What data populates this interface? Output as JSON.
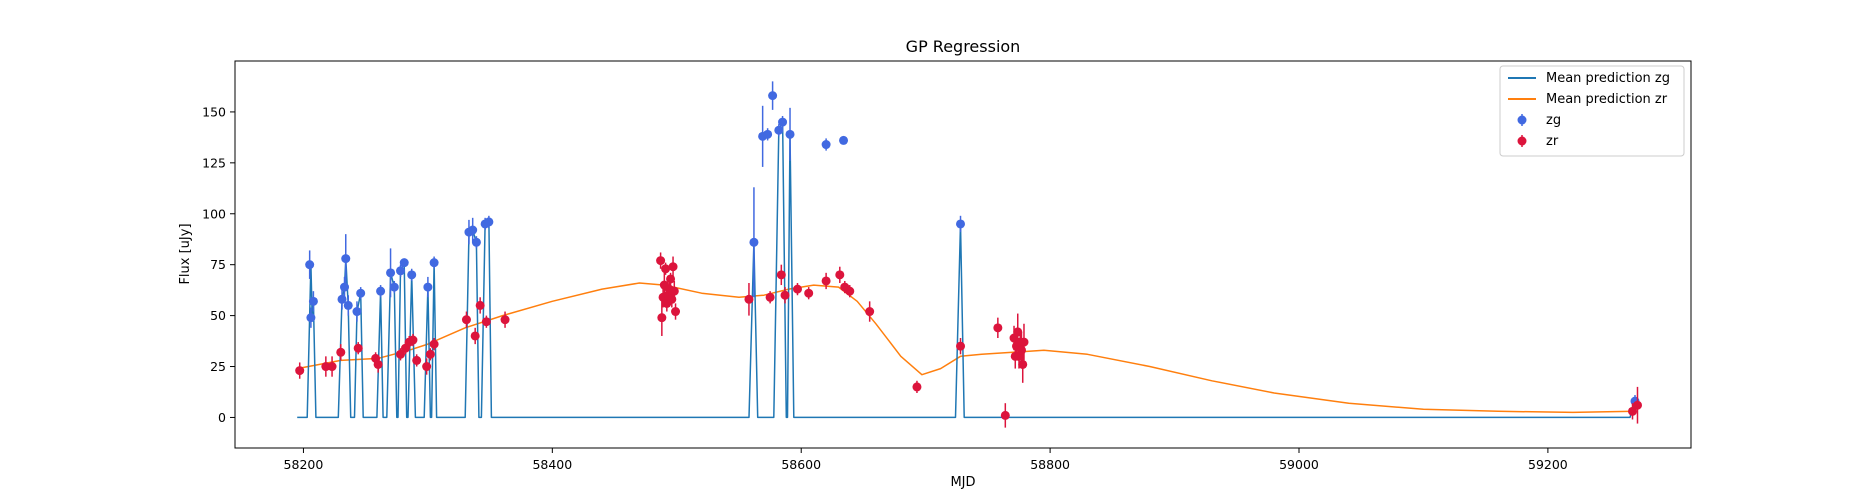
{
  "chart_data": {
    "type": "scatter",
    "title": "GP Regression",
    "xlabel": "MJD",
    "ylabel": "Flux [uJy]",
    "xlim": [
      58145,
      59315
    ],
    "ylim": [
      -15,
      175
    ],
    "xticks": [
      58200,
      58400,
      58600,
      58800,
      59000,
      59200
    ],
    "yticks": [
      0,
      25,
      50,
      75,
      100,
      125,
      150
    ],
    "grid": false,
    "legend_position": "top-right",
    "legend": {
      "mean_zg": "Mean prediction zg",
      "mean_zr": "Mean prediction zr",
      "zg": "zg",
      "zr": "zr"
    },
    "colors": {
      "mean_zg": "#1f77b4",
      "mean_zr": "#ff7f0e",
      "zg": "#4169e1",
      "zr": "#dc143c"
    },
    "series": [
      {
        "name": "zg",
        "kind": "errorbar",
        "points": [
          [
            58205,
            75,
            7
          ],
          [
            58206,
            49,
            5
          ],
          [
            58208,
            57,
            5
          ],
          [
            58231,
            58,
            5
          ],
          [
            58233,
            64,
            5
          ],
          [
            58234,
            78,
            12
          ],
          [
            58236,
            55,
            5
          ],
          [
            58243,
            52,
            5
          ],
          [
            58246,
            61,
            3
          ],
          [
            58262,
            62,
            3
          ],
          [
            58270,
            71,
            12
          ],
          [
            58273,
            64,
            3
          ],
          [
            58278,
            72,
            3
          ],
          [
            58281,
            76,
            2
          ],
          [
            58287,
            70,
            3
          ],
          [
            58300,
            64,
            5
          ],
          [
            58305,
            76,
            3
          ],
          [
            58333,
            91,
            6
          ],
          [
            58336,
            92,
            6
          ],
          [
            58339,
            86,
            3
          ],
          [
            58346,
            95,
            3
          ],
          [
            58349,
            96,
            3
          ],
          [
            58562,
            86,
            27
          ],
          [
            58569,
            138,
            15
          ],
          [
            58573,
            139,
            3
          ],
          [
            58577,
            158,
            7
          ],
          [
            58582,
            141,
            3
          ],
          [
            58585,
            145,
            3
          ],
          [
            58591,
            139,
            13
          ],
          [
            58620,
            134,
            3
          ],
          [
            58634,
            136,
            2
          ],
          [
            58728,
            95,
            4
          ],
          [
            59270,
            8,
            3
          ]
        ]
      },
      {
        "name": "zr",
        "kind": "errorbar",
        "points": [
          [
            58197,
            23,
            4
          ],
          [
            58218,
            25,
            5
          ],
          [
            58223,
            25,
            5
          ],
          [
            58230,
            32,
            4
          ],
          [
            58244,
            34,
            3
          ],
          [
            58258,
            29,
            3
          ],
          [
            58260,
            26,
            4
          ],
          [
            58278,
            31,
            3
          ],
          [
            58282,
            34,
            3
          ],
          [
            58285,
            37,
            3
          ],
          [
            58288,
            38,
            3
          ],
          [
            58291,
            28,
            3
          ],
          [
            58299,
            25,
            4
          ],
          [
            58302,
            31,
            3
          ],
          [
            58305,
            36,
            3
          ],
          [
            58331,
            48,
            4
          ],
          [
            58338,
            40,
            4
          ],
          [
            58342,
            55,
            4
          ],
          [
            58347,
            47,
            3
          ],
          [
            58362,
            48,
            4
          ],
          [
            58487,
            77,
            4
          ],
          [
            58488,
            49,
            9
          ],
          [
            58489,
            59,
            5
          ],
          [
            58490,
            65,
            6
          ],
          [
            58491,
            73,
            3
          ],
          [
            58492,
            56,
            4
          ],
          [
            58493,
            60,
            4
          ],
          [
            58494,
            63,
            4
          ],
          [
            58495,
            68,
            3
          ],
          [
            58496,
            58,
            4
          ],
          [
            58497,
            74,
            5
          ],
          [
            58498,
            62,
            5
          ],
          [
            58499,
            52,
            4
          ],
          [
            58558,
            58,
            8
          ],
          [
            58575,
            59,
            3
          ],
          [
            58584,
            70,
            5
          ],
          [
            58587,
            60,
            4
          ],
          [
            58597,
            63,
            3
          ],
          [
            58606,
            61,
            3
          ],
          [
            58620,
            67,
            4
          ],
          [
            58631,
            70,
            4
          ],
          [
            58635,
            64,
            3
          ],
          [
            58639,
            62,
            3
          ],
          [
            58655,
            52,
            5
          ],
          [
            58693,
            15,
            3
          ],
          [
            58728,
            35,
            4
          ],
          [
            58758,
            44,
            5
          ],
          [
            58764,
            1,
            6
          ],
          [
            58771,
            39,
            6
          ],
          [
            58772,
            30,
            6
          ],
          [
            58773,
            35,
            6
          ],
          [
            58774,
            42,
            9
          ],
          [
            58775,
            30,
            6
          ],
          [
            58776,
            37,
            6
          ],
          [
            58777,
            33,
            9
          ],
          [
            58778,
            26,
            9
          ],
          [
            58779,
            37,
            9
          ],
          [
            59268,
            3,
            4
          ],
          [
            59272,
            6,
            9
          ]
        ]
      },
      {
        "name": "Mean prediction zr",
        "kind": "line",
        "points": [
          [
            58195,
            24
          ],
          [
            58230,
            28
          ],
          [
            58260,
            29
          ],
          [
            58285,
            33
          ],
          [
            58300,
            36
          ],
          [
            58330,
            44
          ],
          [
            58360,
            50
          ],
          [
            58400,
            57
          ],
          [
            58440,
            63
          ],
          [
            58470,
            66
          ],
          [
            58490,
            65
          ],
          [
            58520,
            61
          ],
          [
            58550,
            59
          ],
          [
            58570,
            60
          ],
          [
            58590,
            63
          ],
          [
            58610,
            65
          ],
          [
            58630,
            64
          ],
          [
            58645,
            57
          ],
          [
            58660,
            46
          ],
          [
            58680,
            30
          ],
          [
            58697,
            21
          ],
          [
            58712,
            24
          ],
          [
            58728,
            30
          ],
          [
            58745,
            31
          ],
          [
            58770,
            32
          ],
          [
            58795,
            33
          ],
          [
            58830,
            31
          ],
          [
            58880,
            25
          ],
          [
            58930,
            18
          ],
          [
            58980,
            12
          ],
          [
            59040,
            7
          ],
          [
            59100,
            4
          ],
          [
            59160,
            3
          ],
          [
            59220,
            2.5
          ],
          [
            59270,
            3
          ]
        ]
      },
      {
        "name": "Mean prediction zg",
        "kind": "line",
        "points": [
          [
            58195,
            0
          ],
          [
            58203,
            0
          ],
          [
            58206,
            75
          ],
          [
            58207,
            49
          ],
          [
            58208,
            57
          ],
          [
            58210,
            0
          ],
          [
            58228,
            0
          ],
          [
            58231,
            58
          ],
          [
            58233,
            64
          ],
          [
            58234,
            78
          ],
          [
            58236,
            55
          ],
          [
            58238,
            0
          ],
          [
            58241,
            0
          ],
          [
            58243,
            52
          ],
          [
            58246,
            61
          ],
          [
            58248,
            0
          ],
          [
            58259,
            0
          ],
          [
            58262,
            62
          ],
          [
            58264,
            0
          ],
          [
            58267,
            0
          ],
          [
            58270,
            71
          ],
          [
            58273,
            64
          ],
          [
            58275,
            0
          ],
          [
            58276,
            0
          ],
          [
            58278,
            72
          ],
          [
            58281,
            76
          ],
          [
            58283,
            0
          ],
          [
            58284,
            0
          ],
          [
            58287,
            70
          ],
          [
            58290,
            0
          ],
          [
            58297,
            0
          ],
          [
            58300,
            64
          ],
          [
            58302,
            0
          ],
          [
            58303,
            0
          ],
          [
            58305,
            76
          ],
          [
            58307,
            0
          ],
          [
            58330,
            0
          ],
          [
            58333,
            91
          ],
          [
            58336,
            92
          ],
          [
            58339,
            86
          ],
          [
            58341,
            0
          ],
          [
            58343,
            0
          ],
          [
            58346,
            95
          ],
          [
            58349,
            96
          ],
          [
            58351,
            0
          ],
          [
            58558,
            0
          ],
          [
            58562,
            86
          ],
          [
            58565,
            0
          ],
          [
            58578,
            0
          ],
          [
            58582,
            141
          ],
          [
            58585,
            145
          ],
          [
            58588,
            0
          ],
          [
            58589,
            0
          ],
          [
            58591,
            139
          ],
          [
            58594,
            0
          ],
          [
            58724,
            0
          ],
          [
            58728,
            95
          ],
          [
            58731,
            0
          ],
          [
            59266,
            0
          ],
          [
            59270,
            8
          ]
        ]
      }
    ]
  }
}
